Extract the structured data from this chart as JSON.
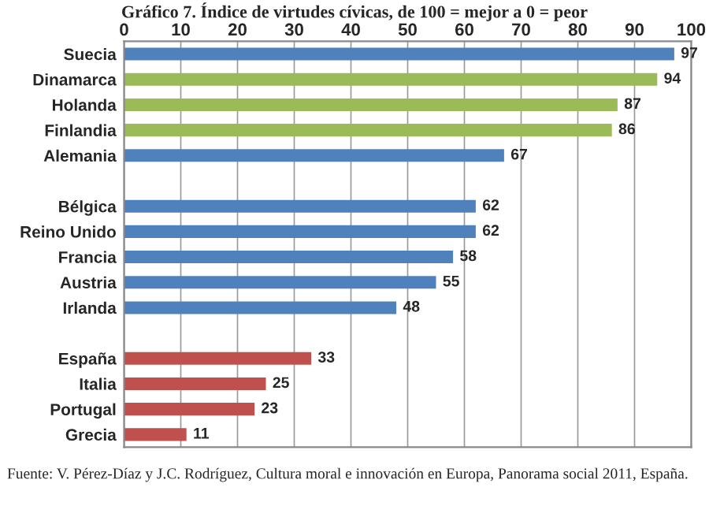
{
  "chart_data": {
    "type": "bar",
    "orientation": "horizontal",
    "title": "Gráfico 7. Índice de virtudes cívicas, de 100 = mejor a 0 = peor",
    "categories": [
      "Suecia",
      "Dinamarca",
      "Holanda",
      "Finlandia",
      "Alemania",
      null,
      "Bélgica",
      "Reino Unido",
      "Francia",
      "Austria",
      "Irlanda",
      null,
      "España",
      "Italia",
      "Portugal",
      "Grecia"
    ],
    "values": [
      97,
      94,
      87,
      86,
      67,
      null,
      62,
      62,
      58,
      55,
      48,
      null,
      33,
      25,
      23,
      11
    ],
    "colors": [
      "#4f81bd",
      "#9bbb59",
      "#9bbb59",
      "#9bbb59",
      "#4f81bd",
      null,
      "#4f81bd",
      "#4f81bd",
      "#4f81bd",
      "#4f81bd",
      "#4f81bd",
      null,
      "#c0504d",
      "#c0504d",
      "#c0504d",
      "#c0504d"
    ],
    "xlim": [
      0,
      100
    ],
    "xticks": [
      0,
      10,
      20,
      30,
      40,
      50,
      60,
      70,
      80,
      90,
      100
    ],
    "grid": "x",
    "data_labels": true,
    "annotations": [
      "Fuente: V. Pérez-Díaz y J.C. Rodríguez, Cultura moral e innovación en Europa, Panorama social 2011, España."
    ]
  }
}
